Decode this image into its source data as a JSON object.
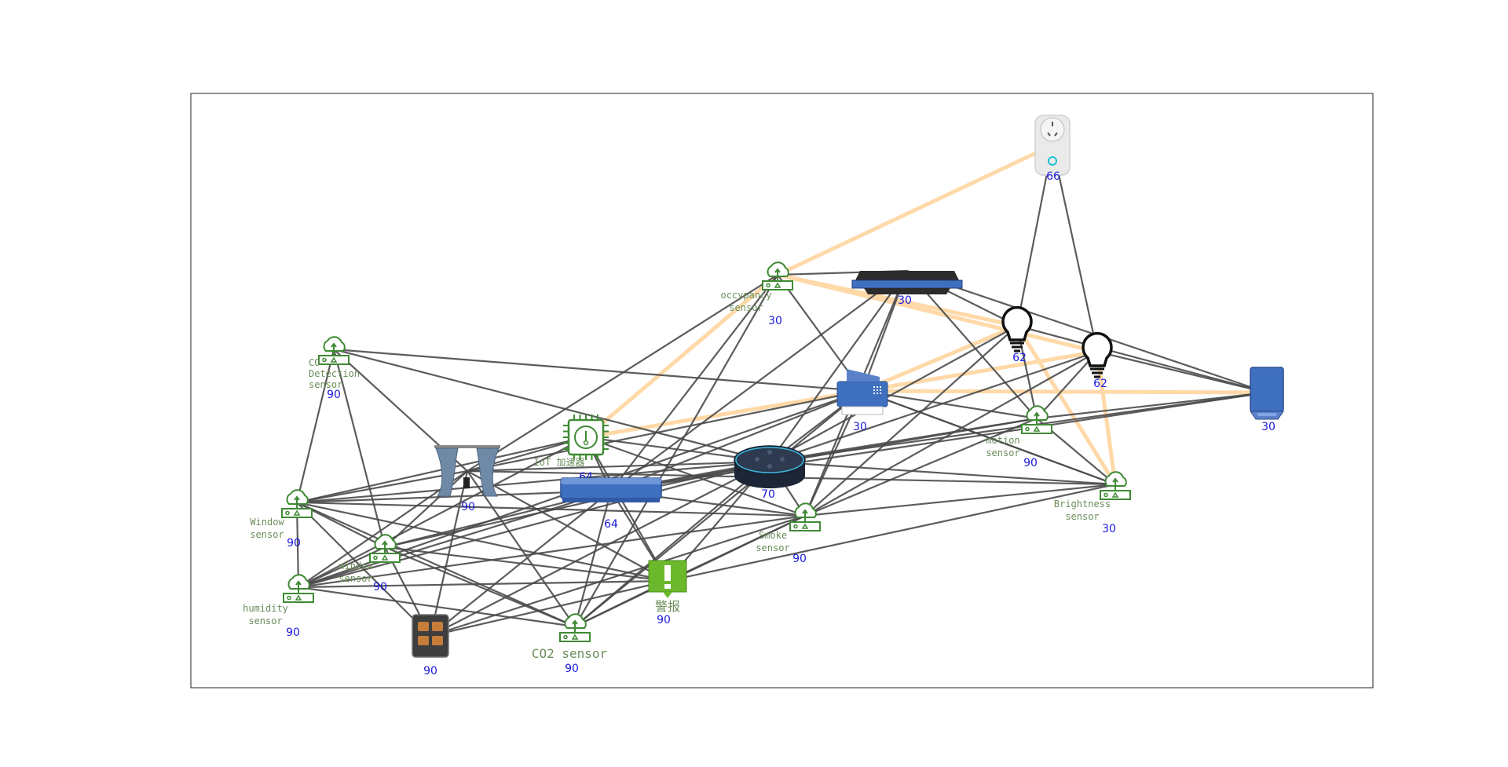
{
  "colors": {
    "edge": "#4a4a4a",
    "highlight": "#ffd9a8",
    "value": "#1a1adc",
    "sensor_label": "#6b8e5a",
    "sensor_icon": "#3f8a34",
    "device_blue": "#3f6fbf"
  },
  "nodes": [
    {
      "id": "plug",
      "icon": "smart-plug",
      "label": [],
      "value": "66"
    },
    {
      "id": "router",
      "icon": "router",
      "label": [],
      "value": "30"
    },
    {
      "id": "occupancy",
      "icon": "cloud-sensor",
      "label": [
        "occypancy",
        "sensor"
      ],
      "value": "30"
    },
    {
      "id": "bulb1",
      "icon": "bulb",
      "label": [],
      "value": "62"
    },
    {
      "id": "bulb2",
      "icon": "bulb",
      "label": [],
      "value": "62"
    },
    {
      "id": "camera",
      "icon": "blue-box",
      "label": [],
      "value": "30"
    },
    {
      "id": "co",
      "icon": "cloud-sensor",
      "label": [
        "CO",
        "Detection",
        "sensor"
      ],
      "value": "90"
    },
    {
      "id": "printer",
      "icon": "printer",
      "label": [],
      "value": "30"
    },
    {
      "id": "iot",
      "icon": "chip",
      "label": [
        "IoT 加速器"
      ],
      "value": "64"
    },
    {
      "id": "motion",
      "icon": "cloud-sensor",
      "label": [
        "motion",
        "sensor"
      ],
      "value": "90"
    },
    {
      "id": "curtain",
      "icon": "curtain",
      "label": [],
      "value": "90"
    },
    {
      "id": "echo",
      "icon": "speaker",
      "label": [],
      "value": "70"
    },
    {
      "id": "strip",
      "icon": "blue-bar",
      "label": [],
      "value": "64"
    },
    {
      "id": "brightness",
      "icon": "cloud-sensor",
      "label": [
        "Brightness",
        "sensor"
      ],
      "value": "30"
    },
    {
      "id": "window",
      "icon": "cloud-sensor",
      "label": [
        "Window",
        "sensor"
      ],
      "value": "90"
    },
    {
      "id": "smoke",
      "icon": "cloud-sensor",
      "label": [
        "Smoke",
        "sensor"
      ],
      "value": "90"
    },
    {
      "id": "window2",
      "icon": "cloud-sensor",
      "label": [
        "window",
        "sensor"
      ],
      "value": "90"
    },
    {
      "id": "alarm",
      "icon": "alarm",
      "label": [
        "警报"
      ],
      "value": "90"
    },
    {
      "id": "humidity",
      "icon": "cloud-sensor",
      "label": [
        "humidity",
        "sensor"
      ],
      "value": "90"
    },
    {
      "id": "switch",
      "icon": "switch-panel",
      "label": [],
      "value": "90"
    },
    {
      "id": "co2",
      "icon": "cloud-sensor",
      "label": [
        "CO2 sensor"
      ],
      "value": "90"
    }
  ],
  "edges": [
    [
      "plug",
      "bulb1"
    ],
    [
      "plug",
      "bulb2"
    ],
    [
      "router",
      "occupancy"
    ],
    [
      "router",
      "bulb1"
    ],
    [
      "router",
      "camera"
    ],
    [
      "router",
      "printer"
    ],
    [
      "router",
      "motion"
    ],
    [
      "router",
      "echo"
    ],
    [
      "router",
      "smoke"
    ],
    [
      "router",
      "strip"
    ],
    [
      "occupancy",
      "printer"
    ],
    [
      "occupancy",
      "curtain"
    ],
    [
      "occupancy",
      "strip"
    ],
    [
      "occupancy",
      "co2"
    ],
    [
      "bulb1",
      "motion"
    ],
    [
      "bulb1",
      "echo"
    ],
    [
      "bulb1",
      "smoke"
    ],
    [
      "bulb1",
      "camera"
    ],
    [
      "bulb2",
      "motion"
    ],
    [
      "bulb2",
      "echo"
    ],
    [
      "bulb2",
      "smoke"
    ],
    [
      "bulb2",
      "camera"
    ],
    [
      "camera",
      "echo"
    ],
    [
      "camera",
      "motion"
    ],
    [
      "camera",
      "strip"
    ],
    [
      "co",
      "window"
    ],
    [
      "co",
      "window2"
    ],
    [
      "co",
      "curtain"
    ],
    [
      "co",
      "printer"
    ],
    [
      "co",
      "echo"
    ],
    [
      "printer",
      "brightness"
    ],
    [
      "printer",
      "echo"
    ],
    [
      "printer",
      "curtain"
    ],
    [
      "printer",
      "motion"
    ],
    [
      "printer",
      "strip"
    ],
    [
      "printer",
      "smoke"
    ],
    [
      "printer",
      "co2"
    ],
    [
      "printer",
      "humidity"
    ],
    [
      "iot",
      "echo"
    ],
    [
      "iot",
      "strip"
    ],
    [
      "iot",
      "smoke"
    ],
    [
      "iot",
      "curtain"
    ],
    [
      "iot",
      "window"
    ],
    [
      "iot",
      "humidity"
    ],
    [
      "iot",
      "alarm"
    ],
    [
      "echo",
      "curtain"
    ],
    [
      "echo",
      "strip"
    ],
    [
      "echo",
      "window"
    ],
    [
      "echo",
      "window2"
    ],
    [
      "echo",
      "humidity"
    ],
    [
      "echo",
      "switch"
    ],
    [
      "echo",
      "co2"
    ],
    [
      "echo",
      "alarm"
    ],
    [
      "echo",
      "motion"
    ],
    [
      "echo",
      "brightness"
    ],
    [
      "echo",
      "smoke"
    ],
    [
      "motion",
      "brightness"
    ],
    [
      "motion",
      "smoke"
    ],
    [
      "motion",
      "strip"
    ],
    [
      "brightness",
      "alarm"
    ],
    [
      "brightness",
      "smoke"
    ],
    [
      "brightness",
      "curtain"
    ],
    [
      "brightness",
      "printer"
    ],
    [
      "curtain",
      "window"
    ],
    [
      "curtain",
      "humidity"
    ],
    [
      "curtain",
      "switch"
    ],
    [
      "curtain",
      "co2"
    ],
    [
      "curtain",
      "alarm"
    ],
    [
      "curtain",
      "window2"
    ],
    [
      "strip",
      "window"
    ],
    [
      "strip",
      "window2"
    ],
    [
      "strip",
      "humidity"
    ],
    [
      "strip",
      "switch"
    ],
    [
      "strip",
      "co2"
    ],
    [
      "strip",
      "alarm"
    ],
    [
      "strip",
      "smoke"
    ],
    [
      "window",
      "humidity"
    ],
    [
      "window",
      "window2"
    ],
    [
      "window",
      "switch"
    ],
    [
      "window",
      "co2"
    ],
    [
      "window",
      "alarm"
    ],
    [
      "window",
      "smoke"
    ],
    [
      "window2",
      "humidity"
    ],
    [
      "window2",
      "co2"
    ],
    [
      "window2",
      "alarm"
    ],
    [
      "window2",
      "switch"
    ],
    [
      "humidity",
      "alarm"
    ],
    [
      "humidity",
      "smoke"
    ],
    [
      "humidity",
      "co2"
    ],
    [
      "switch",
      "alarm"
    ],
    [
      "switch",
      "smoke"
    ],
    [
      "co2",
      "alarm"
    ],
    [
      "co2",
      "smoke"
    ],
    [
      "alarm",
      "smoke"
    ]
  ],
  "highlight_edges": [
    [
      "plug",
      "occupancy"
    ],
    [
      "occupancy",
      "bulb1"
    ],
    [
      "occupancy",
      "bulb2"
    ],
    [
      "occupancy",
      "iot"
    ],
    [
      "printer",
      "bulb1"
    ],
    [
      "printer",
      "bulb2"
    ],
    [
      "printer",
      "camera"
    ],
    [
      "printer",
      "iot"
    ],
    [
      "bulb1",
      "brightness"
    ],
    [
      "bulb2",
      "brightness"
    ]
  ]
}
